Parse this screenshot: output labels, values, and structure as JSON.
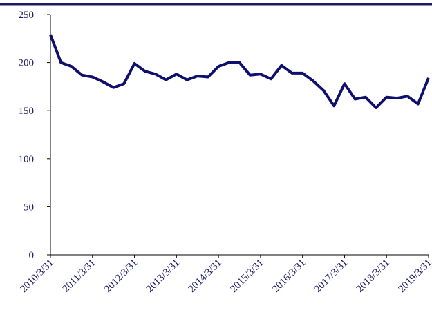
{
  "chart_data": {
    "type": "line",
    "categories": [
      "2010/3/31",
      null,
      null,
      null,
      "2011/3/31",
      null,
      null,
      null,
      "2012/3/31",
      null,
      null,
      null,
      "2013/3/31",
      null,
      null,
      null,
      "2014/3/31",
      null,
      null,
      null,
      "2015/3/31",
      null,
      null,
      null,
      "2016/3/31",
      null,
      null,
      null,
      "2017/3/31",
      null,
      null,
      null,
      "2018/3/31",
      null,
      null,
      null,
      "2019/3/31"
    ],
    "series": [
      {
        "color": "#0f0f6e",
        "values": [
          229,
          200,
          196,
          187,
          185,
          180,
          174,
          178,
          199,
          191,
          188,
          182,
          188,
          182,
          186,
          185,
          196,
          200,
          200,
          187,
          188,
          183,
          197,
          189,
          189,
          181,
          171,
          155,
          178,
          162,
          164,
          153,
          164,
          163,
          165,
          157,
          184
        ]
      }
    ],
    "ylim": [
      0,
      250
    ],
    "yticks": [
      0,
      50,
      100,
      150,
      200,
      250
    ],
    "grid": false
  }
}
